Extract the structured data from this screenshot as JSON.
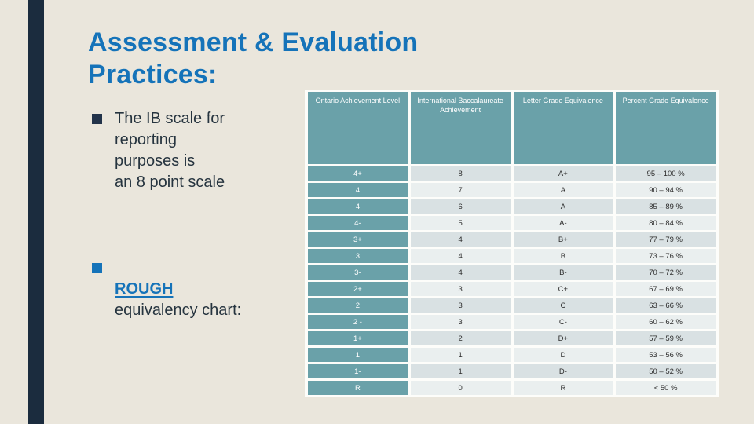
{
  "slide": {
    "title": "Assessment & Evaluation\nPractices:",
    "bullets": [
      {
        "text": "The IB scale for\nreporting\npurposes is\nan 8 point scale"
      },
      {
        "link": "ROUGH",
        "text": "equivalency chart:"
      }
    ]
  },
  "table": {
    "columns": [
      "Ontario Achievement Level",
      "International Baccalaureate Achievement",
      "Letter Grade Equivalence",
      "Percent Grade Equivalence"
    ],
    "rows": [
      [
        "4+",
        "8",
        "A+",
        "95 – 100 %"
      ],
      [
        "4",
        "7",
        "A",
        "90 – 94 %"
      ],
      [
        "4",
        "6",
        "A",
        "85 – 89 %"
      ],
      [
        "4-",
        "5",
        "A-",
        "80 – 84 %"
      ],
      [
        "3+",
        "4",
        "B+",
        "77 – 79 %"
      ],
      [
        "3",
        "4",
        "B",
        "73 – 76 %"
      ],
      [
        "3-",
        "4",
        "B-",
        "70 – 72 %"
      ],
      [
        "2+",
        "3",
        "C+",
        "67 – 69 %"
      ],
      [
        "2",
        "3",
        "C",
        "63 – 66 %"
      ],
      [
        "2 -",
        "3",
        "C-",
        "60 – 62 %"
      ],
      [
        "1+",
        "2",
        "D+",
        "57 – 59 %"
      ],
      [
        "1",
        "1",
        "D",
        "53 – 56 %"
      ],
      [
        "1-",
        "1",
        "D-",
        "50 – 52 %"
      ],
      [
        "R",
        "0",
        "R",
        "< 50 %"
      ]
    ]
  },
  "colors": {
    "background": "#eae6dc",
    "accent_bar_navy": "#1b2c3e",
    "title_blue": "#1573b9",
    "body_text": "#26343f",
    "table_teal": "#6aa1a9",
    "row_dark": "#d9e1e3",
    "row_light": "#eaefef",
    "table_grid_white": "#fdfdfa"
  }
}
